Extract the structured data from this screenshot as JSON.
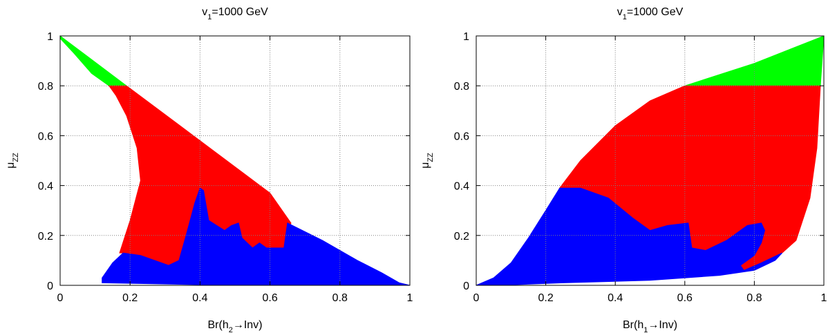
{
  "chart_data": [
    {
      "type": "scatter",
      "title": {
        "base": "v",
        "sub": "1",
        "rest": "=1000 GeV"
      },
      "xlabel": {
        "base": "Br(h",
        "sub": "2",
        "rest": "→Inv)"
      },
      "ylabel": {
        "base": "μ",
        "sub": "ZZ",
        "rest": ""
      },
      "xlim": [
        0,
        1
      ],
      "ylim": [
        0,
        1
      ],
      "xticks": [
        "0",
        "0.2",
        "0.4",
        "0.6",
        "0.8",
        "1"
      ],
      "yticks": [
        "0",
        "0.2",
        "0.4",
        "0.6",
        "0.8",
        "1"
      ],
      "grid": true,
      "colors": {
        "green": "#00ff00",
        "red": "#ff0000",
        "blue": "#0000ff"
      },
      "regions": [
        {
          "color": "green",
          "points": [
            [
              0,
              1
            ],
            [
              0.19,
              0.8
            ],
            [
              0.14,
              0.8
            ],
            [
              0.09,
              0.85
            ],
            [
              0.04,
              0.93
            ],
            [
              0,
              0.99
            ]
          ]
        },
        {
          "color": "red",
          "points": [
            [
              0.14,
              0.8
            ],
            [
              0.19,
              0.8
            ],
            [
              0.4,
              0.58
            ],
            [
              0.6,
              0.37
            ],
            [
              0.66,
              0.25
            ],
            [
              0.64,
              0.15
            ],
            [
              0.58,
              0.13
            ],
            [
              0.48,
              0.1
            ],
            [
              0.3,
              0.07
            ],
            [
              0.18,
              0.13
            ],
            [
              0.17,
              0.13
            ],
            [
              0.2,
              0.26
            ],
            [
              0.23,
              0.42
            ],
            [
              0.22,
              0.55
            ],
            [
              0.19,
              0.68
            ],
            [
              0.16,
              0.76
            ]
          ]
        },
        {
          "color": "blue",
          "points": [
            [
              0.12,
              0.01
            ],
            [
              0.12,
              0.03
            ],
            [
              0.15,
              0.09
            ],
            [
              0.18,
              0.13
            ],
            [
              0.23,
              0.12
            ],
            [
              0.31,
              0.08
            ],
            [
              0.34,
              0.1
            ],
            [
              0.36,
              0.2
            ],
            [
              0.385,
              0.33
            ],
            [
              0.4,
              0.39
            ],
            [
              0.41,
              0.38
            ],
            [
              0.425,
              0.26
            ],
            [
              0.47,
              0.22
            ],
            [
              0.49,
              0.24
            ],
            [
              0.51,
              0.25
            ],
            [
              0.52,
              0.19
            ],
            [
              0.55,
              0.15
            ],
            [
              0.57,
              0.17
            ],
            [
              0.59,
              0.15
            ],
            [
              0.64,
              0.15
            ],
            [
              0.65,
              0.25
            ],
            [
              0.75,
              0.18
            ],
            [
              0.85,
              0.1
            ],
            [
              0.92,
              0.05
            ],
            [
              0.97,
              0.01
            ],
            [
              1,
              0
            ],
            [
              0.5,
              0
            ]
          ]
        }
      ]
    },
    {
      "type": "scatter",
      "title": {
        "base": "v",
        "sub": "1",
        "rest": "=1000 GeV"
      },
      "xlabel": {
        "base": "Br(h",
        "sub": "1",
        "rest": "→Inv)"
      },
      "ylabel": {
        "base": "μ",
        "sub": "ZZ",
        "rest": ""
      },
      "xlim": [
        0,
        1
      ],
      "ylim": [
        0,
        1
      ],
      "xticks": [
        "0",
        "0.2",
        "0.4",
        "0.6",
        "0.8",
        "1"
      ],
      "yticks": [
        "0",
        "0.2",
        "0.4",
        "0.6",
        "0.8",
        "1"
      ],
      "grid": true,
      "colors": {
        "green": "#00ff00",
        "red": "#ff0000",
        "blue": "#0000ff"
      },
      "regions": [
        {
          "color": "green",
          "points": [
            [
              0.6,
              0.8
            ],
            [
              0.8,
              0.89
            ],
            [
              1,
              1
            ],
            [
              0.99,
              0.8
            ]
          ]
        },
        {
          "color": "red",
          "points": [
            [
              0.24,
              0.39
            ],
            [
              0.3,
              0.5
            ],
            [
              0.4,
              0.64
            ],
            [
              0.5,
              0.74
            ],
            [
              0.6,
              0.8
            ],
            [
              0.99,
              0.8
            ],
            [
              0.98,
              0.55
            ],
            [
              0.96,
              0.35
            ],
            [
              0.92,
              0.18
            ],
            [
              0.88,
              0.13
            ],
            [
              0.82,
              0.09
            ],
            [
              0.77,
              0.06
            ],
            [
              0.76,
              0.08
            ],
            [
              0.8,
              0.12
            ],
            [
              0.82,
              0.17
            ],
            [
              0.82,
              0.25
            ],
            [
              0.78,
              0.24
            ],
            [
              0.72,
              0.18
            ],
            [
              0.66,
              0.14
            ],
            [
              0.62,
              0.15
            ],
            [
              0.61,
              0.25
            ],
            [
              0.55,
              0.24
            ],
            [
              0.5,
              0.22
            ],
            [
              0.45,
              0.27
            ],
            [
              0.38,
              0.35
            ],
            [
              0.3,
              0.39
            ]
          ]
        },
        {
          "color": "blue",
          "points": [
            [
              0,
              0
            ],
            [
              0.05,
              0.03
            ],
            [
              0.1,
              0.09
            ],
            [
              0.15,
              0.19
            ],
            [
              0.2,
              0.3
            ],
            [
              0.24,
              0.39
            ],
            [
              0.3,
              0.39
            ],
            [
              0.38,
              0.35
            ],
            [
              0.45,
              0.27
            ],
            [
              0.5,
              0.22
            ],
            [
              0.55,
              0.24
            ],
            [
              0.61,
              0.25
            ],
            [
              0.62,
              0.15
            ],
            [
              0.66,
              0.14
            ],
            [
              0.72,
              0.18
            ],
            [
              0.78,
              0.24
            ],
            [
              0.82,
              0.25
            ],
            [
              0.83,
              0.22
            ],
            [
              0.82,
              0.17
            ],
            [
              0.8,
              0.12
            ],
            [
              0.76,
              0.08
            ],
            [
              0.77,
              0.06
            ],
            [
              0.82,
              0.09
            ],
            [
              0.88,
              0.13
            ],
            [
              0.86,
              0.1
            ],
            [
              0.8,
              0.06
            ],
            [
              0.7,
              0.04
            ],
            [
              0.5,
              0.02
            ],
            [
              0.25,
              0.01
            ],
            [
              0.1,
              0.002
            ]
          ]
        }
      ]
    }
  ]
}
